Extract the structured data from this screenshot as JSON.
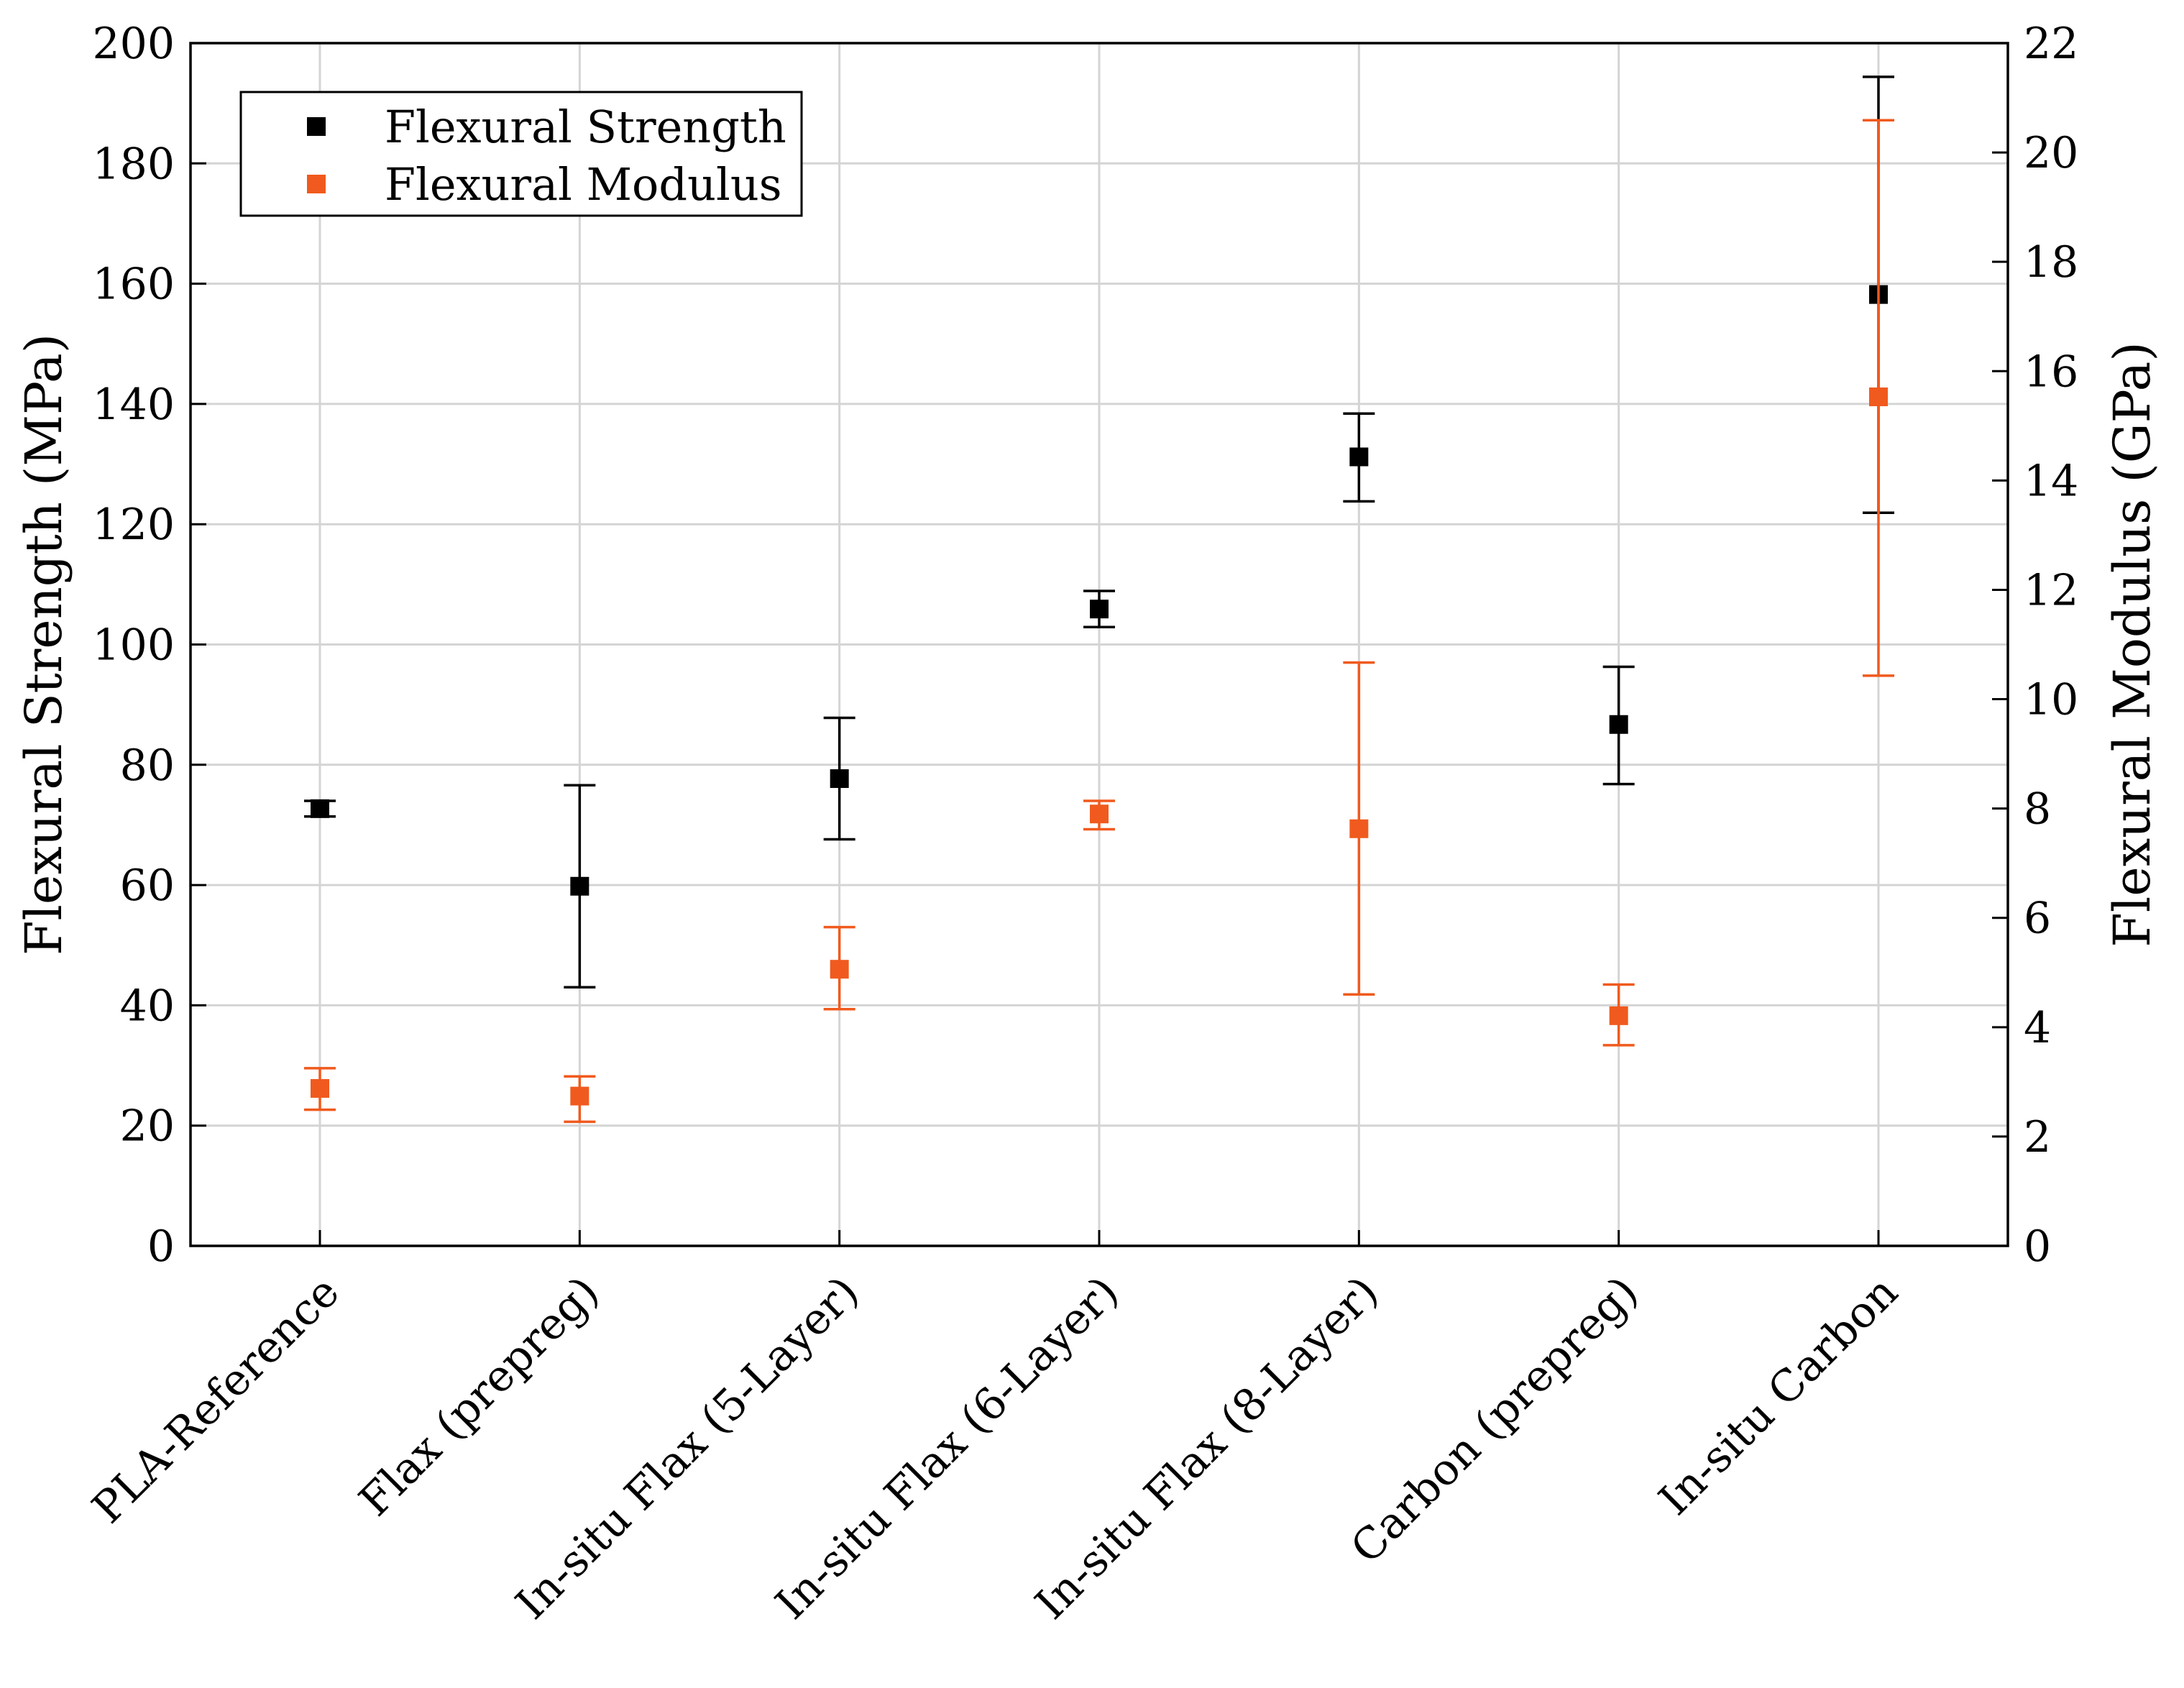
{
  "chart_data": {
    "type": "scatter",
    "categories": [
      "PLA-Reference",
      "Flax (prepreg)",
      "In-situ Flax (5-Layer)",
      "In-situ Flax (6-Layer)",
      "In-situ Flax (8-Layer)",
      "Carbon (prepreg)",
      "In-situ Carbon"
    ],
    "series": [
      {
        "name": "Flexural Strength",
        "axis": "left",
        "color": "#000000",
        "values": [
          72.7,
          59.8,
          77.7,
          105.9,
          131.2,
          86.7,
          158.2
        ],
        "err_low": [
          71.4,
          43.0,
          67.6,
          102.9,
          123.8,
          76.8,
          121.9
        ],
        "err_high": [
          74.0,
          76.6,
          87.8,
          108.9,
          138.4,
          96.3,
          194.4
        ]
      },
      {
        "name": "Flexural Modulus",
        "axis": "right",
        "color": "#f05a1e",
        "values": [
          2.88,
          2.74,
          5.06,
          7.9,
          7.63,
          4.21,
          15.53
        ],
        "err_low": [
          2.49,
          2.27,
          4.33,
          7.62,
          4.6,
          3.67,
          10.43
        ],
        "err_high": [
          3.25,
          3.1,
          5.83,
          8.14,
          10.67,
          4.78,
          20.59
        ]
      }
    ],
    "ylabel": "Flexural Strength (MPa)",
    "y2label": "Flexural Modulus (GPa)",
    "ylim": [
      0,
      200
    ],
    "y2lim": [
      0,
      22
    ],
    "yticks": [
      "0",
      "20",
      "40",
      "60",
      "80",
      "100",
      "120",
      "140",
      "160",
      "180",
      "200"
    ],
    "y2ticks": [
      "0",
      "2",
      "4",
      "6",
      "8",
      "10",
      "12",
      "14",
      "16",
      "18",
      "20",
      "22"
    ],
    "grid": true,
    "legend_position": "top-left"
  }
}
